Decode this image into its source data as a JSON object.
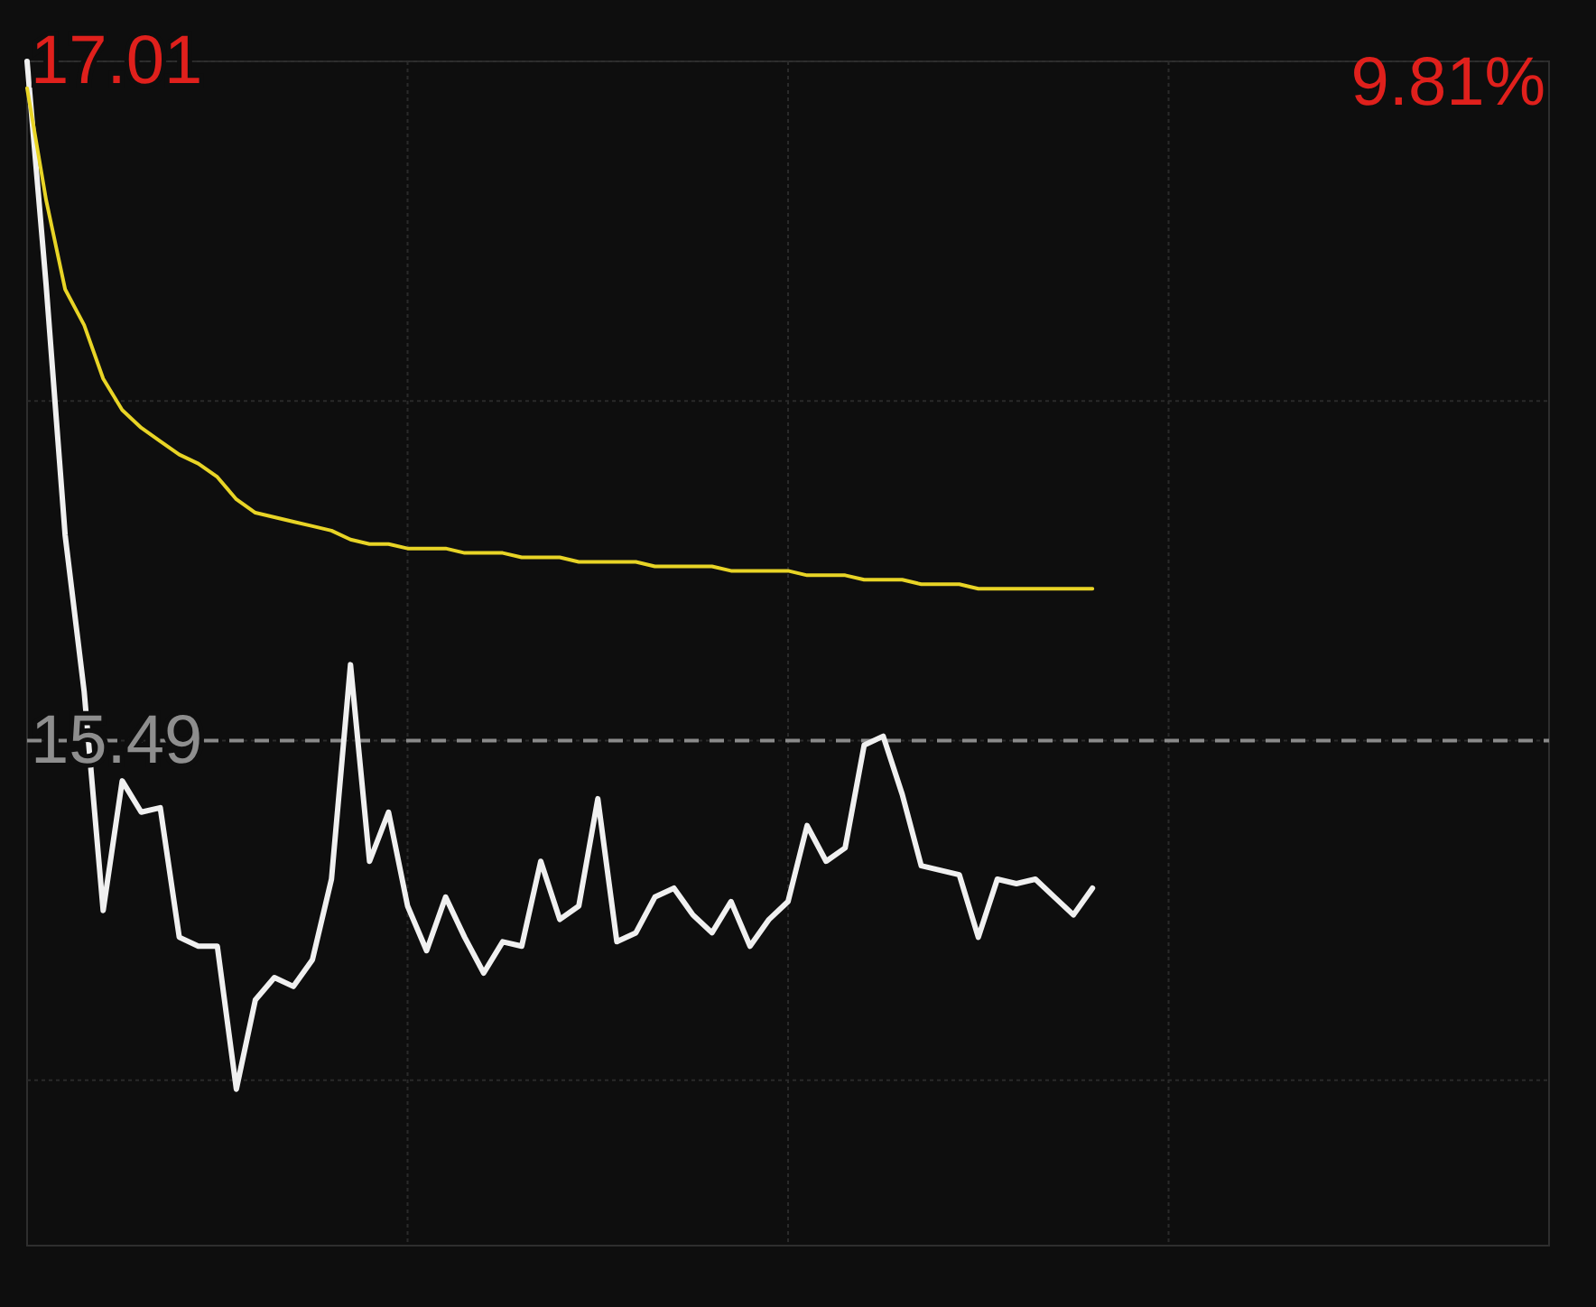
{
  "chart_data": {
    "type": "line",
    "categories": [
      null,
      null,
      null,
      null,
      null,
      null,
      null,
      null,
      null,
      null,
      null,
      null,
      null,
      null,
      null,
      null,
      null,
      null,
      null,
      null,
      null,
      null,
      null,
      null,
      null,
      null,
      null,
      null,
      null,
      null,
      null,
      null,
      null,
      null,
      null,
      null,
      null,
      null,
      null,
      null,
      null,
      null,
      null,
      null,
      null,
      null,
      null,
      null,
      null,
      null,
      null,
      null,
      null,
      null,
      null,
      null,
      null,
      null,
      null,
      null,
      null,
      null,
      null,
      null,
      null,
      null,
      null,
      null,
      null,
      null,
      null,
      null,
      null,
      null,
      null,
      null,
      null,
      null,
      null,
      null,
      null
    ],
    "series": [
      {
        "color": "#f0f0f0",
        "values": [
          17.01,
          16.51,
          15.95,
          15.6,
          15.11,
          15.4,
          15.33,
          15.34,
          15.05,
          15.03,
          15.03,
          14.71,
          14.91,
          14.96,
          14.94,
          15.0,
          15.18,
          15.66,
          15.22,
          15.33,
          15.12,
          15.02,
          15.14,
          15.05,
          14.97,
          15.04,
          15.03,
          15.22,
          15.09,
          15.12,
          15.36,
          15.04,
          15.06,
          15.14,
          15.16,
          15.1,
          15.06,
          15.13,
          15.03,
          15.09,
          15.13,
          15.3,
          15.22,
          15.25,
          15.48,
          15.5,
          15.37,
          15.21,
          15.2,
          15.19,
          15.05,
          15.18,
          15.17,
          15.18,
          15.14,
          15.1,
          15.16,
          null,
          null,
          null,
          null,
          null,
          null,
          null,
          null,
          null,
          null,
          null,
          null,
          null,
          null,
          null,
          null,
          null,
          null,
          null,
          null,
          null,
          null,
          null,
          null
        ]
      },
      {
        "color": "#e8d426",
        "values": [
          16.95,
          16.7,
          16.5,
          16.42,
          16.3,
          16.23,
          16.19,
          16.16,
          16.13,
          16.11,
          16.08,
          16.03,
          16.0,
          15.99,
          15.98,
          15.97,
          15.96,
          15.94,
          15.93,
          15.93,
          15.92,
          15.92,
          15.92,
          15.91,
          15.91,
          15.91,
          15.9,
          15.9,
          15.9,
          15.89,
          15.89,
          15.89,
          15.89,
          15.88,
          15.88,
          15.88,
          15.88,
          15.87,
          15.87,
          15.87,
          15.87,
          15.86,
          15.86,
          15.86,
          15.85,
          15.85,
          15.85,
          15.84,
          15.84,
          15.84,
          15.83,
          15.83,
          15.83,
          15.83,
          15.83,
          15.83,
          15.83,
          null,
          null,
          null,
          null,
          null,
          null,
          null,
          null,
          null,
          null,
          null,
          null,
          null,
          null,
          null,
          null,
          null,
          null,
          null,
          null,
          null,
          null,
          null,
          null
        ]
      }
    ],
    "ylim": [
      14.36,
      17.01
    ],
    "yticks": [
      17.01,
      {
        "value": 16.25,
        "label": null
      },
      15.49,
      {
        "value": 14.73,
        "label": null
      }
    ],
    "tick_labels": "y",
    "grid": true,
    "ref_lines": [
      {
        "axis": "y",
        "value": 15.49,
        "color": "#8a8a8a",
        "line_style": "dashed"
      }
    ],
    "annotations": [
      "9.81%"
    ]
  }
}
